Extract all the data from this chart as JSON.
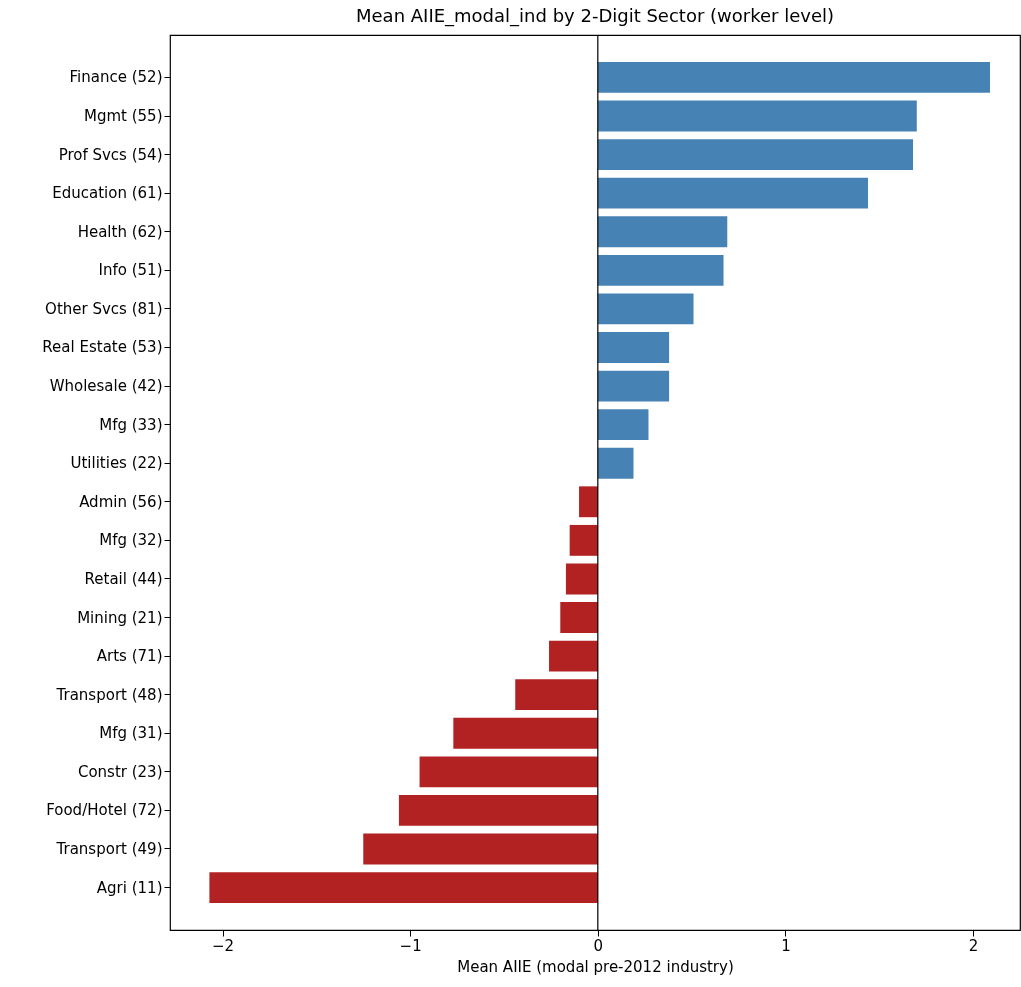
{
  "chart_data": {
    "type": "bar",
    "orientation": "horizontal",
    "title": "Mean AIIE_modal_ind by 2-Digit Sector (worker level)",
    "xlabel": "Mean AIIE (modal pre-2012 industry)",
    "categories": [
      "Finance (52)",
      "Mgmt (55)",
      "Prof Svcs (54)",
      "Education (61)",
      "Health (62)",
      "Info (51)",
      "Other Svcs (81)",
      "Real Estate (53)",
      "Wholesale (42)",
      "Mfg (33)",
      "Utilities (22)",
      "Admin (56)",
      "Mfg (32)",
      "Retail (44)",
      "Mining (21)",
      "Arts (71)",
      "Transport (48)",
      "Mfg (31)",
      "Constr (23)",
      "Food/Hotel (72)",
      "Transport (49)",
      "Agri (11)"
    ],
    "values": [
      2.09,
      1.7,
      1.68,
      1.44,
      0.69,
      0.67,
      0.51,
      0.38,
      0.38,
      0.27,
      0.19,
      -0.1,
      -0.15,
      -0.17,
      -0.2,
      -0.26,
      -0.44,
      -0.77,
      -0.95,
      -1.06,
      -1.25,
      -2.07
    ],
    "colors": [
      "#4682b4",
      "#4682b4",
      "#4682b4",
      "#4682b4",
      "#4682b4",
      "#4682b4",
      "#4682b4",
      "#4682b4",
      "#4682b4",
      "#4682b4",
      "#4682b4",
      "#b22222",
      "#b22222",
      "#b22222",
      "#b22222",
      "#b22222",
      "#b22222",
      "#b22222",
      "#b22222",
      "#b22222",
      "#b22222",
      "#b22222"
    ],
    "xlim": [
      -2.28,
      2.25
    ],
    "xticks": [
      {
        "value": -2,
        "label": "−2"
      },
      {
        "value": -1,
        "label": "−1"
      },
      0,
      1,
      2
    ],
    "ref_lines": [
      {
        "axis": "x",
        "value": 0,
        "color": "#000000"
      }
    ],
    "grid": false
  }
}
